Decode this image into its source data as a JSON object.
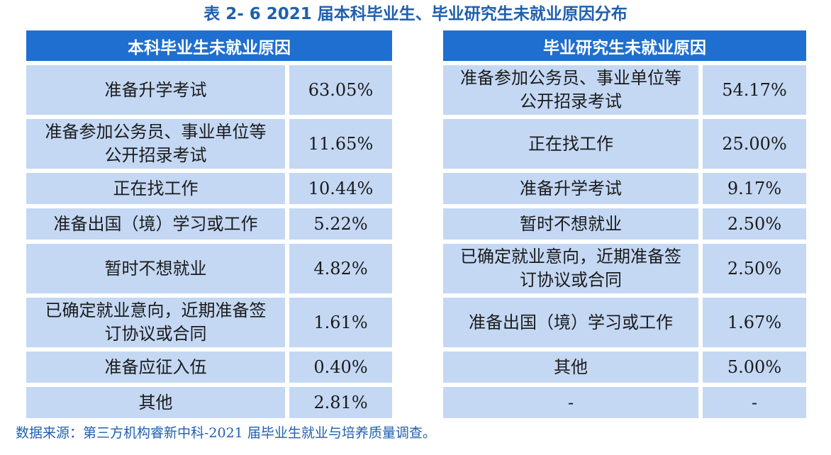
{
  "title": "表 2- 6  2021 届本科毕业生、毕业研究生未就业原因分布",
  "left_table": {
    "header": "本科毕业生未就业原因",
    "rows": [
      {
        "reason": "准备升学考试",
        "percent": "63.05%"
      },
      {
        "reason": "准备参加公务员、事业单位等公开招录考试",
        "percent": "11.65%"
      },
      {
        "reason": "正在找工作",
        "percent": "10.44%"
      },
      {
        "reason": "准备出国（境）学习或工作",
        "percent": "5.22%"
      },
      {
        "reason": "暂时不想就业",
        "percent": "4.82%"
      },
      {
        "reason": "已确定就业意向，近期准备签订协议或合同",
        "percent": "1.61%"
      },
      {
        "reason": "准备应征入伍",
        "percent": "0.40%"
      },
      {
        "reason": "其他",
        "percent": "2.81%"
      }
    ]
  },
  "right_table": {
    "header": "毕业研究生未就业原因",
    "rows": [
      {
        "reason": "准备参加公务员、事业单位等公开招录考试",
        "percent": "54.17%"
      },
      {
        "reason": "正在找工作",
        "percent": "25.00%"
      },
      {
        "reason": "准备升学考试",
        "percent": "9.17%"
      },
      {
        "reason": "暂时不想就业",
        "percent": "2.50%"
      },
      {
        "reason": "已确定就业意向，近期准备签订协议或合同",
        "percent": "2.50%"
      },
      {
        "reason": "准备出国（境）学习或工作",
        "percent": "1.67%"
      },
      {
        "reason": "其他",
        "percent": "5.00%"
      },
      {
        "reason": "-",
        "percent": "-"
      }
    ]
  },
  "source": "数据来源：第三方机构睿新中科-2021 届毕业生就业与培养质量调查。"
}
